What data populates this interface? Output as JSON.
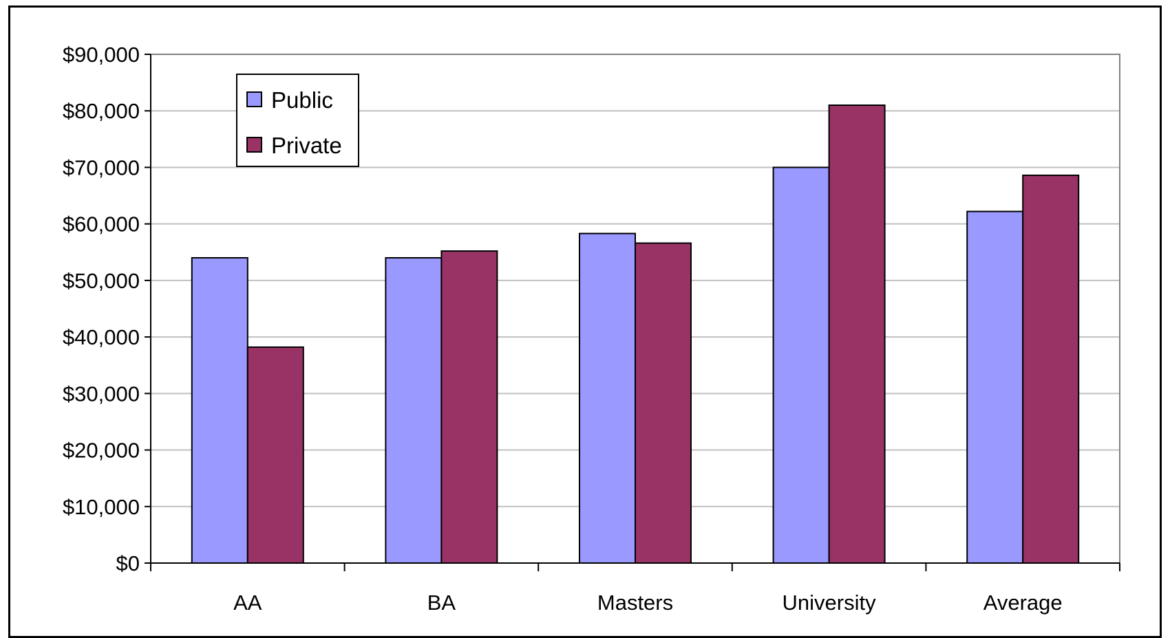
{
  "chart_data": {
    "type": "bar",
    "title": "",
    "xlabel": "",
    "ylabel": "",
    "categories": [
      "AA",
      "BA",
      "Masters",
      "University",
      "Average"
    ],
    "series": [
      {
        "name": "Public",
        "color": "#9999ff",
        "values": [
          54000,
          54000,
          58300,
          70000,
          62200
        ]
      },
      {
        "name": "Private",
        "color": "#993366",
        "values": [
          38200,
          55200,
          56600,
          81000,
          68600
        ]
      }
    ],
    "ylim": [
      0,
      90000
    ],
    "yticks": [
      0,
      10000,
      20000,
      30000,
      40000,
      50000,
      60000,
      70000,
      80000,
      90000
    ],
    "ytick_labels": [
      "$0",
      "$10,000",
      "$20,000",
      "$30,000",
      "$40,000",
      "$50,000",
      "$60,000",
      "$70,000",
      "$80,000",
      "$90,000"
    ],
    "grid": true,
    "grid_color": "#c0c0c0",
    "legend_position": "top-left"
  }
}
